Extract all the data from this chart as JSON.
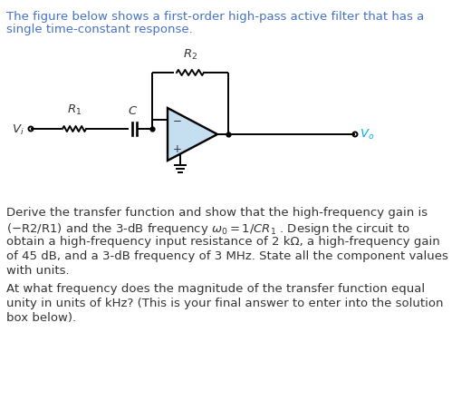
{
  "bg_color": "#ffffff",
  "text_color": "#333333",
  "link_color": "#4472c4",
  "cyan_color": "#00aeef",
  "opamp_fill": "#c5dff0",
  "circuit_color": "#000000",
  "line1": "The figure below shows a first-order high-pass active filter that has a",
  "line2": "single time-constant response.",
  "para1_line1": "Derive the transfer function and show that the high-frequency gain is",
  "para1_line2": "(−R2/R1) and the 3-dB frequency ω₀ = 1/CR₁ . Design the circuit to",
  "para1_line3": "obtain a high-frequency input resistance of 2 kΩ, a high-frequency gain",
  "para1_line4": "of 45 dB, and a 3-dB frequency of 3 MHz. State all the component values",
  "para1_line5": "with units.",
  "para2_line1": "At what frequency does the magnitude of the transfer function equal",
  "para2_line2": "unity in units of kHz? (This is your final answer to enter into the solution",
  "para2_line3": "box below).",
  "R1_label": "$R_1$",
  "R2_label": "$R_2$",
  "C_label": "$C$",
  "Vi_label": "$V_i$",
  "Vo_label": "$V_o$"
}
